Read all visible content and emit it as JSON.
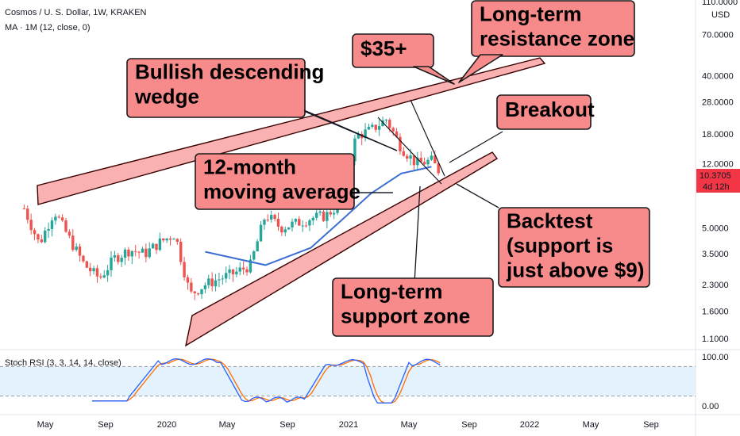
{
  "header": {
    "symbol_line": "Cosmos / U. S. Dollar, 1W, KRAKEN",
    "ma_line": "MA · 1M (12, close, 0)",
    "rsi_label": "Stoch RSI (3, 3, 14, 14, close)"
  },
  "currency": "USD",
  "price_badge": {
    "value": "10.3705",
    "countdown": "4d 12h",
    "color": "#f23645"
  },
  "colors": {
    "up": "#26a69a",
    "down": "#ef5350",
    "ma": "#3d6fd3",
    "k_line": "#2962ff",
    "d_line": "#ff6d00",
    "callout_fill": "#f78b8b",
    "zone_fill": "#f9b1b1",
    "rsi_band": "#e3f2fd"
  },
  "annotations": {
    "wedge": [
      "Bullish descending",
      "wedge"
    ],
    "target": [
      "$35+"
    ],
    "resistance": [
      "Long-term",
      "resistance zone"
    ],
    "breakout": [
      "Breakout"
    ],
    "ma": [
      "12-month",
      "moving average"
    ],
    "backtest": [
      "Backtest",
      "(support is",
      "just above $9)"
    ],
    "support": [
      "Long-term",
      "support zone"
    ]
  },
  "chart_data": [
    {
      "type": "candlestick",
      "title": "Cosmos / U. S. Dollar, 1W, KRAKEN",
      "y_scale": "log",
      "y_ticks": [
        "110.0000",
        "70.0000",
        "40.0000",
        "28.0000",
        "18.0000",
        "12.0000",
        "5.0000",
        "3.5000",
        "2.3000",
        "1.6000",
        "1.1000"
      ],
      "x_ticks": [
        "May",
        "Sep",
        "2020",
        "May",
        "Sep",
        "2021",
        "May",
        "Sep",
        "2022",
        "May",
        "Sep"
      ],
      "x_range": [
        "2019-04",
        "2022-10"
      ],
      "ylim": [
        1.0,
        110.0
      ],
      "close_series": [
        {
          "date": "2019-04",
          "value": 6.5
        },
        {
          "date": "2019-05",
          "value": 4.0
        },
        {
          "date": "2019-06",
          "value": 6.3
        },
        {
          "date": "2019-07",
          "value": 4.3
        },
        {
          "date": "2019-08",
          "value": 3.0
        },
        {
          "date": "2019-09",
          "value": 2.5
        },
        {
          "date": "2019-10",
          "value": 3.3
        },
        {
          "date": "2019-11",
          "value": 3.7
        },
        {
          "date": "2019-12",
          "value": 3.5
        },
        {
          "date": "2020-01",
          "value": 4.1
        },
        {
          "date": "2020-02",
          "value": 4.6
        },
        {
          "date": "2020-03",
          "value": 2.0
        },
        {
          "date": "2020-04",
          "value": 2.3
        },
        {
          "date": "2020-05",
          "value": 2.5
        },
        {
          "date": "2020-06",
          "value": 2.7
        },
        {
          "date": "2020-07",
          "value": 3.0
        },
        {
          "date": "2020-08",
          "value": 6.0
        },
        {
          "date": "2020-09",
          "value": 5.0
        },
        {
          "date": "2020-10",
          "value": 5.3
        },
        {
          "date": "2020-11",
          "value": 5.7
        },
        {
          "date": "2020-12",
          "value": 5.9
        },
        {
          "date": "2021-01",
          "value": 7.0
        },
        {
          "date": "2021-02",
          "value": 17.5
        },
        {
          "date": "2021-03",
          "value": 19.0
        },
        {
          "date": "2021-04",
          "value": 22.0
        },
        {
          "date": "2021-05",
          "value": 15.0
        },
        {
          "date": "2021-06",
          "value": 12.0
        },
        {
          "date": "2021-07",
          "value": 12.5
        },
        {
          "date": "2021-07-20",
          "value": 10.3705
        }
      ],
      "moving_average": [
        {
          "date": "2020-04",
          "value": 3.6
        },
        {
          "date": "2020-08",
          "value": 3.0
        },
        {
          "date": "2020-11",
          "value": 3.8
        },
        {
          "date": "2021-01",
          "value": 5.5
        },
        {
          "date": "2021-03",
          "value": 8.0
        },
        {
          "date": "2021-05",
          "value": 10.5
        },
        {
          "date": "2021-07",
          "value": 11.5
        }
      ]
    },
    {
      "type": "line",
      "title": "Stoch RSI (3, 3, 14, 14, close)",
      "y_ticks": [
        "100.00",
        "0.00"
      ],
      "ylim": [
        0,
        100
      ],
      "band": [
        20,
        80
      ],
      "series": []
    }
  ]
}
